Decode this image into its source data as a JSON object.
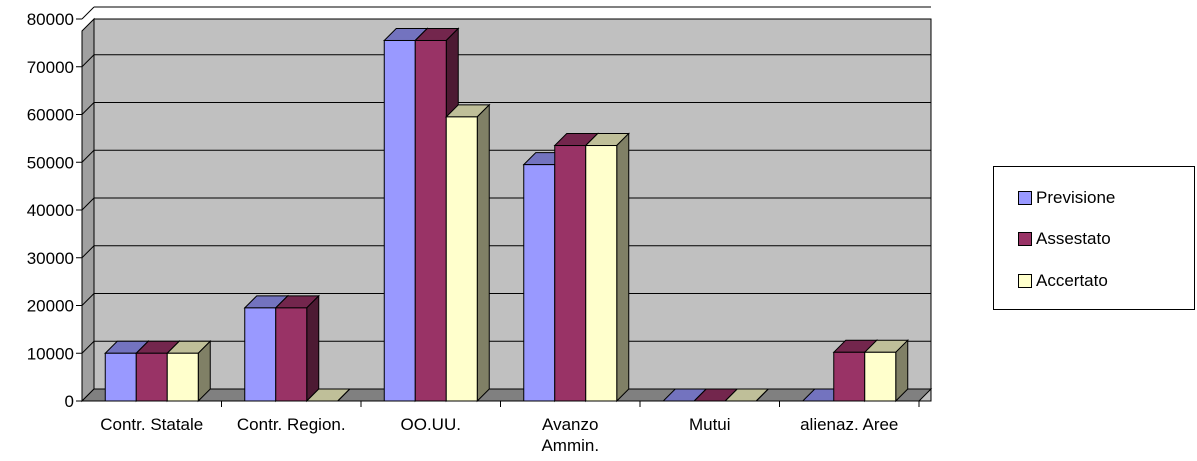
{
  "chart_data": {
    "type": "bar",
    "categories": [
      "Contr. Statale",
      "Contr. Region.",
      "OO.UU.",
      "Avanzo Ammin.",
      "Mutui",
      "alienaz. Aree"
    ],
    "series": [
      {
        "name": "Previsione",
        "values": [
          10000,
          19500,
          75500,
          49500,
          0,
          0
        ],
        "color": "#9999ff"
      },
      {
        "name": "Assestato",
        "values": [
          10000,
          19500,
          75500,
          53500,
          0,
          10200
        ],
        "color": "#993366"
      },
      {
        "name": "Accertato",
        "values": [
          10000,
          0,
          59500,
          53500,
          0,
          10200
        ],
        "color": "#ffffcc"
      }
    ],
    "ylim": [
      0,
      80000
    ],
    "yticks": [
      "0",
      "10000",
      "20000",
      "30000",
      "40000",
      "50000",
      "60000",
      "70000",
      "80000"
    ],
    "grid": true,
    "legend_position": "right",
    "plot_background": "#c0c0c0"
  }
}
